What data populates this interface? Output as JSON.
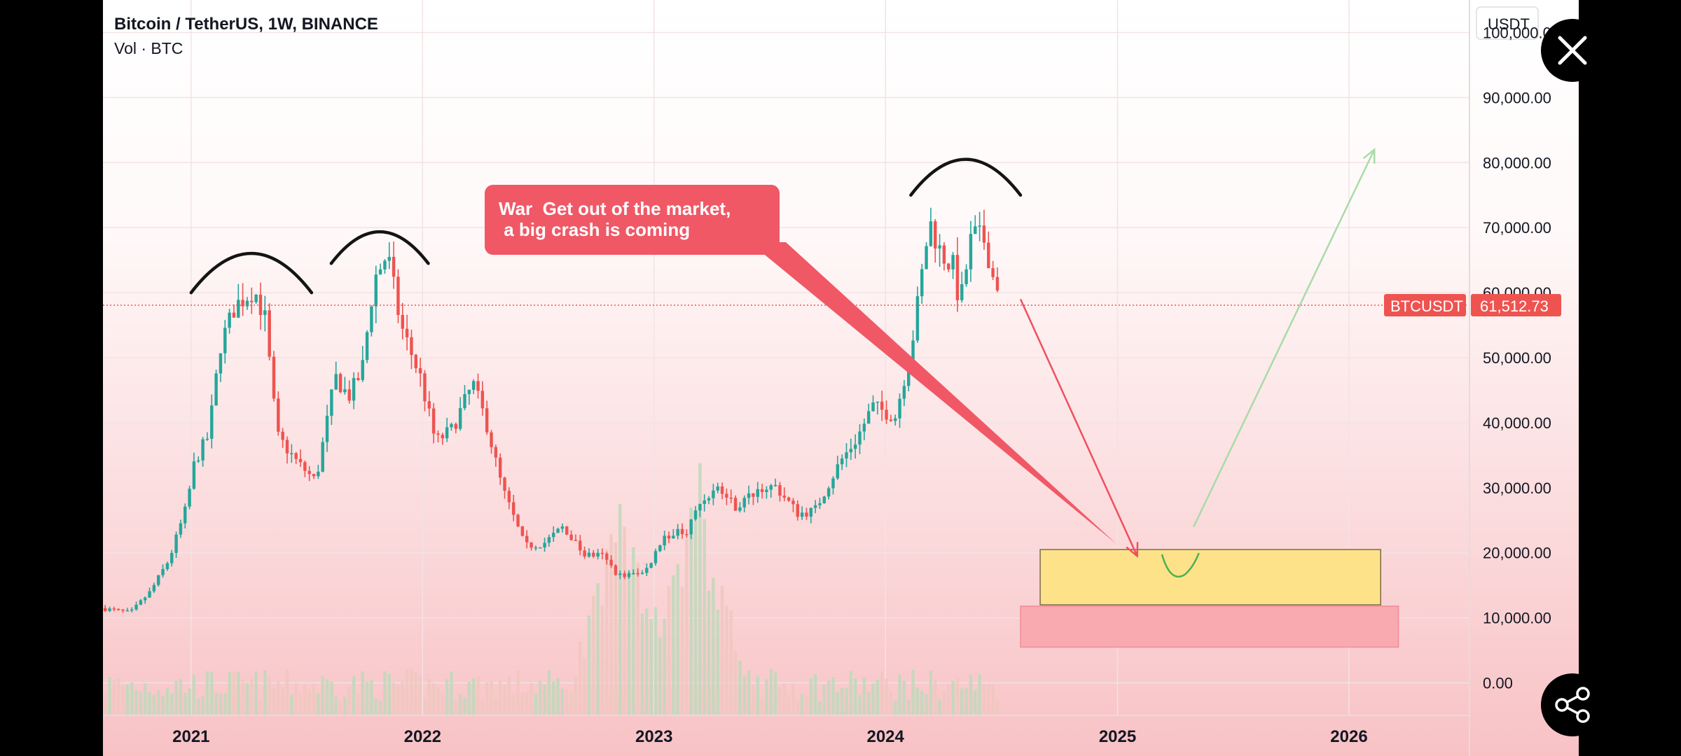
{
  "header": {
    "title": "Bitcoin / TetherUS, 1W, BINANCE",
    "subtitle": "Vol · BTC"
  },
  "currency_button": "USDT",
  "price_tag": {
    "symbol": "BTCUSDT",
    "value": "61,512.73"
  },
  "callout_text": [
    "War  Get out of the market,",
    " a big crash is coming"
  ],
  "y_tick_labels": [
    "100,000.00",
    "90,000.00",
    "80,000.00",
    "70,000.00",
    "60,000.00",
    "50,000.00",
    "40,000.00",
    "30,000.00",
    "20,000.00",
    "10,000.00",
    "0.00"
  ],
  "x_tick_labels": [
    "2021",
    "2022",
    "2023",
    "2024",
    "2025",
    "2026"
  ],
  "buttons": {
    "close": "close-icon",
    "share": "share-icon"
  },
  "colors": {
    "up": "#26a69a",
    "down": "#ef5350",
    "callout": "#f05866",
    "yellow_zone": "#fde28a",
    "red_zone": "#f8aab0",
    "green_arrow": "#a9dba7",
    "red_arrow": "#ef4f5f"
  },
  "chart_data": {
    "type": "candlestick",
    "title": "Bitcoin / TetherUS, 1W, BINANCE",
    "symbol": "BTCUSDT",
    "current_price": 61512.73,
    "ylim": [
      -5000,
      105000
    ],
    "xlim": [
      "2020-08-15",
      "2026-07-10"
    ],
    "y_ticks": [
      0,
      10000,
      20000,
      30000,
      40000,
      50000,
      60000,
      70000,
      80000,
      90000,
      100000
    ],
    "x_ticks": [
      "2021-01-01",
      "2022-01-01",
      "2023-01-01",
      "2024-01-01",
      "2025-01-01",
      "2026-01-01"
    ],
    "price_path": [
      [
        "2020-08-15",
        11500
      ],
      [
        "2020-10-01",
        10800
      ],
      [
        "2020-11-01",
        14000
      ],
      [
        "2020-12-01",
        19000
      ],
      [
        "2020-12-28",
        27000
      ],
      [
        "2021-01-10",
        34000
      ],
      [
        "2021-02-01",
        38000
      ],
      [
        "2021-02-20",
        52000
      ],
      [
        "2021-03-15",
        58000
      ],
      [
        "2021-04-14",
        60500
      ],
      [
        "2021-05-01",
        56000
      ],
      [
        "2021-05-20",
        38000
      ],
      [
        "2021-06-20",
        34000
      ],
      [
        "2021-07-20",
        31000
      ],
      [
        "2021-08-20",
        47000
      ],
      [
        "2021-09-10",
        44000
      ],
      [
        "2021-10-01",
        48000
      ],
      [
        "2021-10-20",
        62000
      ],
      [
        "2021-11-10",
        66000
      ],
      [
        "2021-12-01",
        55000
      ],
      [
        "2022-01-01",
        47000
      ],
      [
        "2022-01-25",
        37000
      ],
      [
        "2022-02-20",
        39000
      ],
      [
        "2022-03-25",
        46000
      ],
      [
        "2022-04-15",
        40000
      ],
      [
        "2022-05-10",
        30000
      ],
      [
        "2022-06-15",
        21000
      ],
      [
        "2022-07-15",
        21500
      ],
      [
        "2022-08-15",
        24000
      ],
      [
        "2022-09-15",
        19800
      ],
      [
        "2022-10-15",
        19500
      ],
      [
        "2022-11-10",
        16500
      ],
      [
        "2022-12-20",
        16800
      ],
      [
        "2023-01-20",
        22500
      ],
      [
        "2023-02-25",
        23500
      ],
      [
        "2023-03-20",
        28000
      ],
      [
        "2023-04-15",
        30000
      ],
      [
        "2023-05-15",
        27000
      ],
      [
        "2023-06-20",
        30000
      ],
      [
        "2023-07-15",
        30200
      ],
      [
        "2023-08-20",
        26000
      ],
      [
        "2023-09-15",
        26500
      ],
      [
        "2023-10-25",
        34000
      ],
      [
        "2023-11-20",
        37500
      ],
      [
        "2023-12-15",
        42500
      ],
      [
        "2024-01-20",
        41000
      ],
      [
        "2024-02-15",
        52000
      ],
      [
        "2024-03-14",
        71000
      ],
      [
        "2024-04-01",
        66000
      ],
      [
        "2024-04-20",
        64000
      ],
      [
        "2024-05-01",
        58000
      ],
      [
        "2024-05-20",
        69000
      ],
      [
        "2024-06-10",
        68000
      ],
      [
        "2024-06-24",
        61500
      ]
    ],
    "volume_peaks": [
      [
        "2022-11-10",
        0.34
      ],
      [
        "2023-03-10",
        0.36
      ]
    ],
    "annotations": [
      {
        "type": "arc",
        "label": "top 1",
        "x": [
          "2021-01-01",
          "2021-07-10"
        ],
        "y": 60000
      },
      {
        "type": "arc",
        "label": "top 2",
        "x": [
          "2021-08-10",
          "2022-01-10"
        ],
        "y": 64500
      },
      {
        "type": "arc",
        "label": "top 3",
        "x": [
          "2024-02-10",
          "2024-08-01"
        ],
        "y": 75000
      },
      {
        "type": "box",
        "label": "yellow zone",
        "x": [
          "2024-09-01",
          "2026-02-20"
        ],
        "y": [
          12000,
          20500
        ]
      },
      {
        "type": "box",
        "label": "red zone",
        "x": [
          "2024-08-01",
          "2026-03-20"
        ],
        "y": [
          5500,
          11800
        ]
      },
      {
        "type": "arrow",
        "label": "red down arrow",
        "from": [
          "2024-08-01",
          59000
        ],
        "to": [
          "2025-02-01",
          19500
        ]
      },
      {
        "type": "arrow",
        "label": "green up arrow",
        "from": [
          "2025-05-01",
          24000
        ],
        "to": [
          "2026-02-10",
          82000
        ]
      }
    ]
  }
}
